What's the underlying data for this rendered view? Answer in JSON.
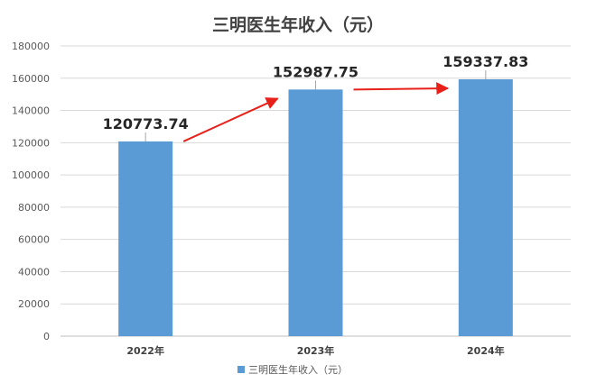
{
  "chart_data": {
    "type": "bar",
    "title": "三明医生年收入（元）",
    "categories": [
      "2022年",
      "2023年",
      "2024年"
    ],
    "series": [
      {
        "name": "三明医生年收入（元）",
        "values": [
          120773.74,
          152987.75,
          159337.83
        ],
        "value_labels": [
          "120773.74",
          "152987.75",
          "159337.83"
        ]
      }
    ],
    "ylim": [
      0,
      180000
    ],
    "yticks": [
      0,
      20000,
      40000,
      60000,
      80000,
      100000,
      120000,
      140000,
      160000,
      180000
    ],
    "grid": true,
    "legend_position": "bottom",
    "colors": {
      "bar": "#5b9bd5",
      "grid": "#d9d9d9",
      "arrow": "#e8201a"
    }
  }
}
